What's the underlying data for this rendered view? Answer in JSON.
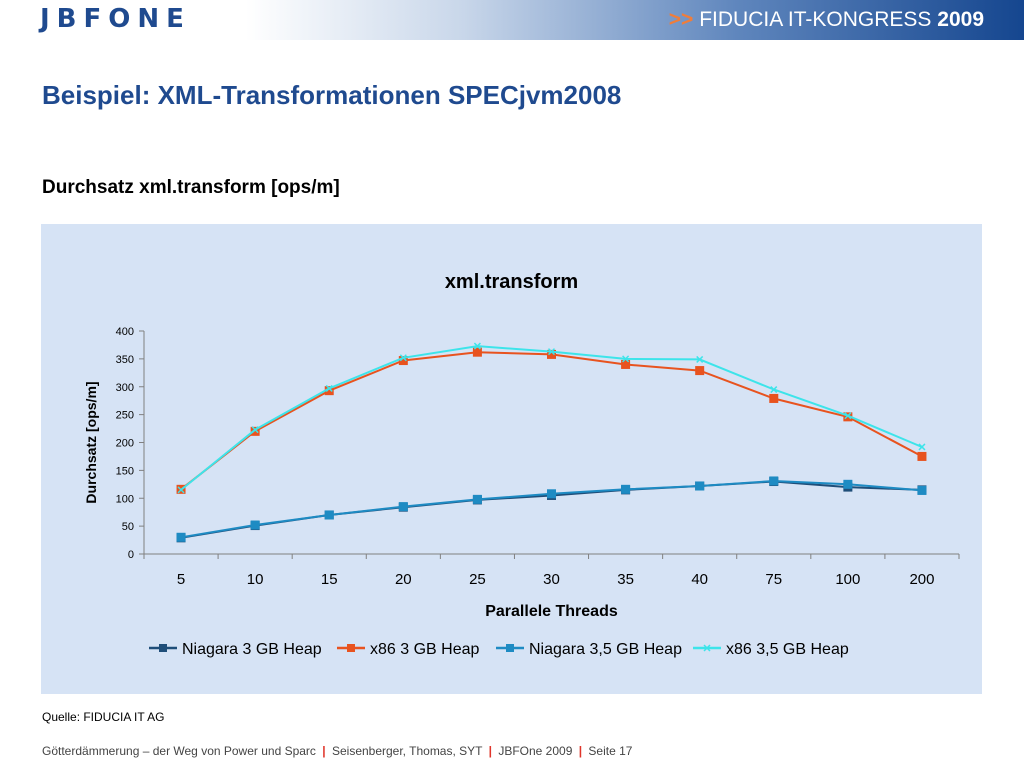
{
  "header": {
    "logo": "JBFONE",
    "arrows": ">>",
    "congress": "FIDUCIA IT-KONGRESS",
    "year": "2009"
  },
  "slide": {
    "title": "Beispiel: XML-Transformationen SPECjvm2008",
    "subtitle": "Durchsatz xml.transform [ops/m]",
    "source": "Quelle: FIDUCIA IT AG",
    "footer": {
      "part1": "Götterdämmerung – der Weg von Power und Sparc",
      "part2": "Seisenberger, Thomas, SYT",
      "part3": "JBFOne 2009",
      "part4": "Seite 17",
      "separator": "|"
    }
  },
  "colors": {
    "title": "#1f4a8f",
    "panel": "#d6e3f5",
    "separator": "#e0352b"
  },
  "chart_data": {
    "type": "line",
    "title": "xml.transform",
    "xlabel": "Parallele Threads",
    "ylabel": "Durchsatz [ops/m]",
    "categories": [
      "5",
      "10",
      "15",
      "20",
      "25",
      "30",
      "35",
      "40",
      "75",
      "100",
      "200"
    ],
    "ylim": [
      0,
      400
    ],
    "yticks": [
      0,
      50,
      100,
      150,
      200,
      250,
      300,
      350,
      400
    ],
    "grid": false,
    "legend": "bottom",
    "series": [
      {
        "name": "Niagara 3 GB Heap",
        "color": "#1f4e79",
        "marker": "square",
        "values": [
          29,
          51,
          70,
          84,
          97,
          105,
          115,
          122,
          130,
          120,
          115
        ]
      },
      {
        "name": "x86 3 GB Heap",
        "color": "#e8531f",
        "marker": "square",
        "values": [
          116,
          220,
          293,
          347,
          362,
          358,
          340,
          329,
          279,
          246,
          175
        ]
      },
      {
        "name": "Niagara 3,5 GB Heap",
        "color": "#1e8bc3",
        "marker": "square",
        "values": [
          30,
          52,
          70,
          85,
          98,
          108,
          116,
          122,
          131,
          125,
          114
        ]
      },
      {
        "name": "x86 3,5 GB Heap",
        "color": "#3de4ea",
        "marker": "x",
        "values": [
          115,
          223,
          297,
          352,
          373,
          363,
          350,
          349,
          295,
          248,
          192
        ]
      }
    ]
  }
}
